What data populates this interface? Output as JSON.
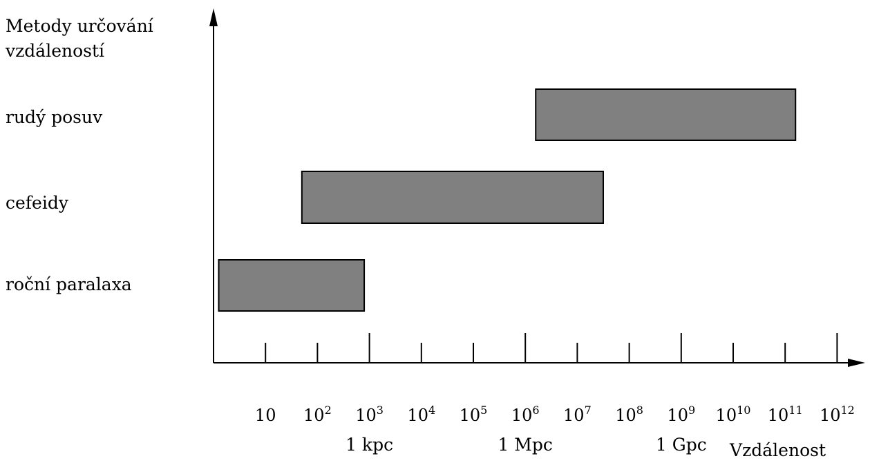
{
  "chart_data": {
    "type": "bar",
    "orientation": "horizontal-range",
    "y_title_lines": [
      "Metody určování",
      "vzdáleností"
    ],
    "xlabel": "Vzdálenost",
    "x_scale": "log10",
    "x_unit_note": "",
    "categories": [
      "rudý posuv",
      "cefeidy",
      "roční paralaxa"
    ],
    "ranges": [
      {
        "category": "rudý posuv",
        "from_log10": 6.2,
        "to_log10": 11.2
      },
      {
        "category": "cefeidy",
        "from_log10": 1.7,
        "to_log10": 7.5
      },
      {
        "category": "roční paralaxa",
        "from_log10": 0.1,
        "to_log10": 2.9
      }
    ],
    "tick_labels": [
      {
        "exp": 1,
        "base": "10",
        "sup": ""
      },
      {
        "exp": 2,
        "base": "10",
        "sup": "2"
      },
      {
        "exp": 3,
        "base": "10",
        "sup": "3"
      },
      {
        "exp": 4,
        "base": "10",
        "sup": "4"
      },
      {
        "exp": 5,
        "base": "10",
        "sup": "5"
      },
      {
        "exp": 6,
        "base": "10",
        "sup": "6"
      },
      {
        "exp": 7,
        "base": "10",
        "sup": "7"
      },
      {
        "exp": 8,
        "base": "10",
        "sup": "8"
      },
      {
        "exp": 9,
        "base": "10",
        "sup": "9"
      },
      {
        "exp": 10,
        "base": "10",
        "sup": "10"
      },
      {
        "exp": 11,
        "base": "10",
        "sup": "11"
      },
      {
        "exp": 12,
        "base": "10",
        "sup": "12"
      }
    ],
    "major_ticks_exp": [
      3,
      6,
      9,
      12
    ],
    "unit_labels": [
      {
        "exp": 3,
        "text": "1 kpc"
      },
      {
        "exp": 6,
        "text": "1 Mpc"
      },
      {
        "exp": 9,
        "text": "1 Gpc"
      }
    ],
    "xlim_log10": [
      0,
      12
    ],
    "bar_color": "#808080",
    "grid": false
  }
}
